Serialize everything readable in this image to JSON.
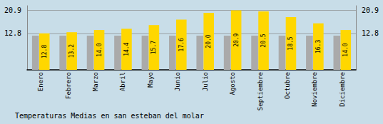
{
  "chart_data": {
    "type": "bar",
    "title": "Temperaturas Medias en san esteban del molar",
    "categories": [
      "Enero",
      "Febrero",
      "Marzo",
      "Abril",
      "Mayo",
      "Junio",
      "Julio",
      "Agosto",
      "Septiembre",
      "Octubre",
      "Noviembre",
      "Diciembre"
    ],
    "series": [
      {
        "color": "#AAAAAA",
        "values": [
          12.0,
          12.0,
          12.0,
          12.0,
          12.0,
          12.0,
          12.0,
          12.0,
          12.0,
          12.0,
          12.0,
          12.0
        ]
      },
      {
        "color": "#FFD700",
        "values": [
          12.8,
          13.2,
          14.0,
          14.4,
          15.7,
          17.6,
          20.0,
          20.9,
          20.5,
          18.5,
          16.3,
          14.0
        ],
        "value_labels": [
          "12.8",
          "13.2",
          "14.0",
          "14.4",
          "15.7",
          "17.6",
          "20.0",
          "20.9",
          "20.5",
          "18.5",
          "16.3",
          "14.0"
        ],
        "data_labels": true
      }
    ],
    "ylim": [
      0,
      22.5
    ],
    "yticks": [
      12.8,
      20.9
    ],
    "y2lim": [
      0,
      22.5
    ],
    "y2ticks": [
      12.8,
      20.9
    ],
    "grid": true
  }
}
